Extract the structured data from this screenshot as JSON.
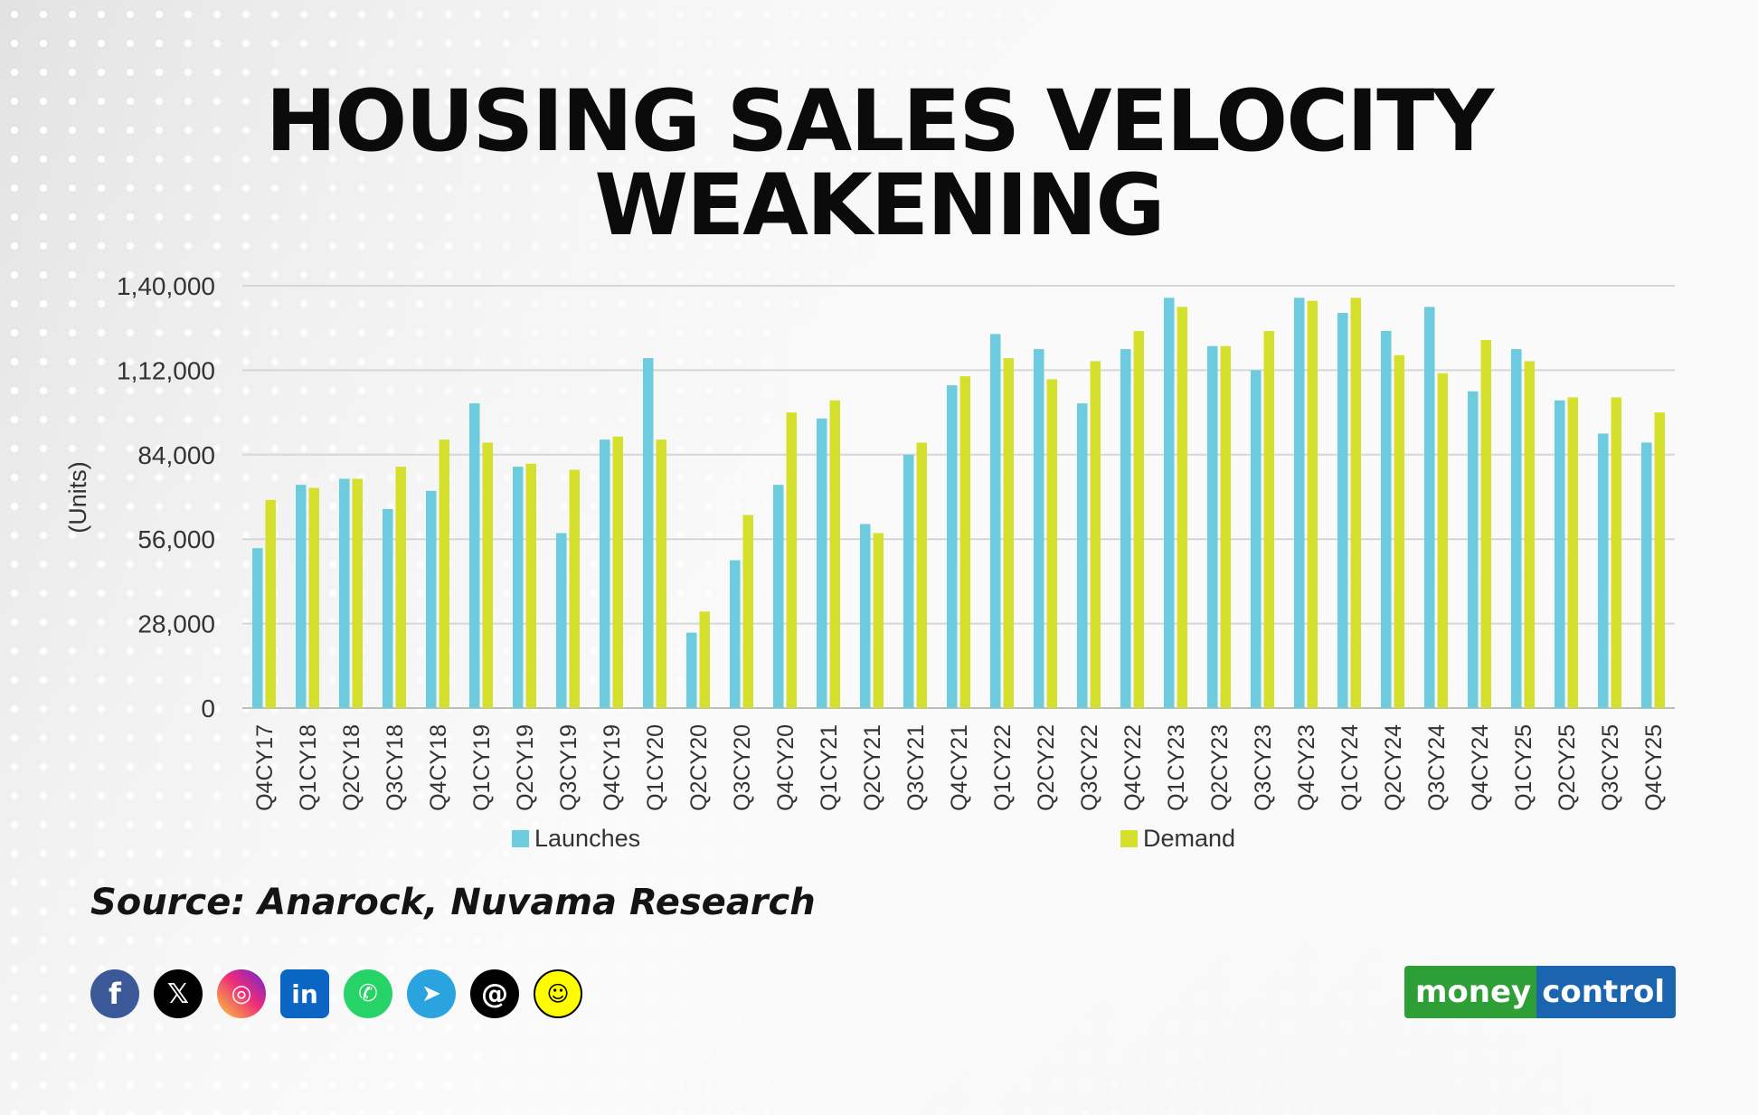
{
  "title": {
    "line1": "HOUSING SALES VELOCITY",
    "line2": "WEAKENING"
  },
  "source": "Source: Anarock, Nuvama Research",
  "social_icons": [
    {
      "name": "facebook-icon",
      "glyph": "f"
    },
    {
      "name": "x-icon",
      "glyph": "𝕏"
    },
    {
      "name": "instagram-icon",
      "glyph": "◎"
    },
    {
      "name": "linkedin-icon",
      "glyph": "in"
    },
    {
      "name": "whatsapp-icon",
      "glyph": "✆"
    },
    {
      "name": "telegram-icon",
      "glyph": "➤"
    },
    {
      "name": "threads-icon",
      "glyph": "@"
    },
    {
      "name": "snapchat-icon",
      "glyph": "☺"
    }
  ],
  "brand": {
    "part1": "money",
    "part2": "control",
    "color1": "#2e9e36",
    "color2": "#1b64b0"
  },
  "chart_data": {
    "type": "bar",
    "ylabel": "(Units)",
    "ylim": [
      0,
      140000
    ],
    "yticks": [
      0,
      28000,
      56000,
      84000,
      112000,
      140000
    ],
    "ytick_labels": [
      "0",
      "28,000",
      "56,000",
      "84,000",
      "1,12,000",
      "1,40,000"
    ],
    "grid": true,
    "legend_position": "bottom",
    "categories": [
      "Q4CY17",
      "Q1CY18",
      "Q2CY18",
      "Q3CY18",
      "Q4CY18",
      "Q1CY19",
      "Q2CY19",
      "Q3CY19",
      "Q4CY19",
      "Q1CY20",
      "Q2CY20",
      "Q3CY20",
      "Q4CY20",
      "Q1CY21",
      "Q2CY21",
      "Q3CY21",
      "Q4CY21",
      "Q1CY22",
      "Q2CY22",
      "Q3CY22",
      "Q4CY22",
      "Q1CY23",
      "Q2CY23",
      "Q3CY23",
      "Q4CY23",
      "Q1CY24",
      "Q2CY24",
      "Q3CY24",
      "Q4CY24",
      "Q1CY25",
      "Q2CY25",
      "Q3CY25",
      "Q4CY25"
    ],
    "series": [
      {
        "name": "Launches",
        "color": "#6ccbdc",
        "values": [
          53000,
          74000,
          76000,
          66000,
          72000,
          101000,
          80000,
          58000,
          89000,
          116000,
          25000,
          49000,
          74000,
          96000,
          61000,
          84000,
          107000,
          124000,
          119000,
          101000,
          119000,
          136000,
          120000,
          112000,
          136000,
          131000,
          125000,
          133000,
          105000,
          119000,
          102000,
          91000,
          88000
        ]
      },
      {
        "name": "Demand",
        "color": "#d4e02c",
        "values": [
          69000,
          73000,
          76000,
          80000,
          89000,
          88000,
          81000,
          79000,
          90000,
          89000,
          32000,
          64000,
          98000,
          102000,
          58000,
          88000,
          110000,
          116000,
          109000,
          115000,
          125000,
          133000,
          120000,
          125000,
          135000,
          136000,
          117000,
          111000,
          122000,
          115000,
          103000,
          103000,
          98000
        ]
      }
    ]
  }
}
